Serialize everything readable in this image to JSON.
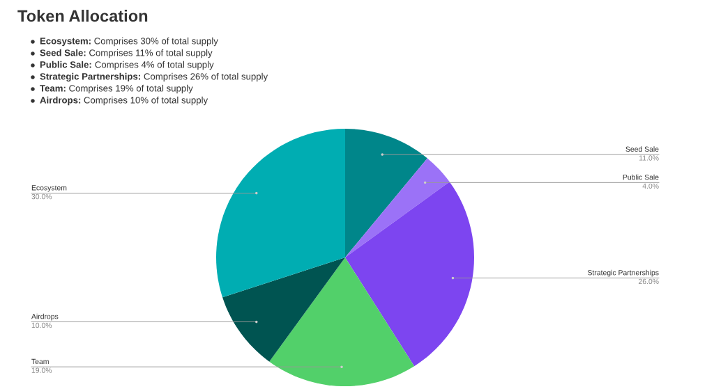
{
  "chart_data": {
    "type": "pie",
    "title": "Token Allocation",
    "annotations": [
      "Ecosystem: Comprises 30% of total supply",
      "Seed Sale: Comprises 11% of total supply",
      "Public Sale: Comprises 4% of total supply",
      "Strategic Partnerships: Comprises 26% of total supply",
      "Team: Comprises 19% of total supply",
      "Airdrops: Comprises 10% of total supply"
    ],
    "categories": [
      "Seed Sale",
      "Public Sale",
      "Strategic Partnerships",
      "Team",
      "Airdrops",
      "Ecosystem"
    ],
    "values": [
      11,
      4,
      26,
      19,
      10,
      30
    ],
    "colors": [
      "#00868a",
      "#9b72f7",
      "#7d45f0",
      "#52d06a",
      "#005451",
      "#00adb2"
    ],
    "value_labels": [
      "11.0%",
      "4.0%",
      "26.0%",
      "19.0%",
      "10.0%",
      "30.0%"
    ],
    "legend": false
  }
}
